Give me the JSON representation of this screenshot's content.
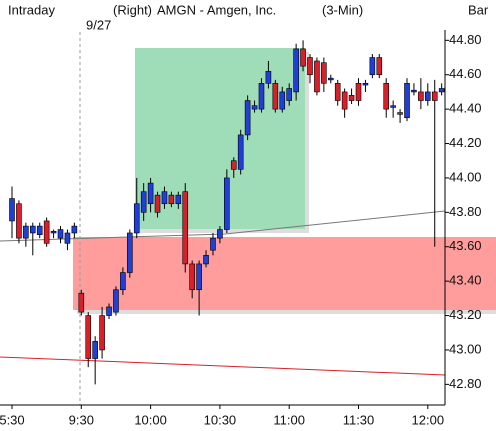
{
  "chart_data": {
    "type": "candlestick",
    "title": "AMGN - Amgen, Inc.",
    "header": {
      "left": "Intraday",
      "side": "(Right)",
      "interval": "(3-Min)",
      "style": "Bar"
    },
    "annotation": "9/27",
    "up_color": "#1f3fd6",
    "down_color": "#d8202a",
    "categories": [
      "5:30",
      null,
      null,
      null,
      null,
      null,
      null,
      null,
      null,
      null,
      "9:30",
      null,
      null,
      null,
      null,
      null,
      null,
      null,
      null,
      null,
      "10:00",
      null,
      null,
      null,
      null,
      null,
      null,
      null,
      null,
      null,
      "10:30",
      null,
      null,
      null,
      null,
      null,
      null,
      null,
      null,
      null,
      "11:00",
      null,
      null,
      null,
      null,
      null,
      null,
      null,
      null,
      null,
      "11:30",
      null,
      null,
      null,
      null,
      null,
      null,
      null,
      null,
      null,
      "12:00",
      null,
      null
    ],
    "open": [
      43.75,
      43.85,
      43.65,
      43.68,
      43.67,
      43.75,
      43.68,
      43.65,
      43.62,
      43.68,
      43.33,
      43.2,
      42.95,
      43.2,
      43.2,
      43.22,
      43.35,
      43.45,
      43.68,
      43.8,
      43.85,
      43.9,
      43.85,
      43.9,
      43.85,
      43.92,
      43.5,
      43.35,
      43.5,
      43.58,
      43.65,
      43.7,
      44.1,
      44.05,
      44.25,
      44.4,
      44.4,
      44.55,
      44.55,
      44.4,
      44.45,
      44.5,
      44.75,
      44.7,
      44.68,
      44.67,
      44.57,
      44.55,
      44.5,
      44.48,
      44.55,
      44.54,
      44.6,
      44.7,
      44.55,
      44.41,
      44.38,
      44.35,
      44.5,
      44.5,
      44.45,
      44.5,
      44.5
    ],
    "high": [
      43.95,
      43.87,
      43.74,
      43.74,
      43.74,
      43.77,
      43.7,
      43.72,
      43.7,
      43.74,
      43.35,
      43.22,
      43.08,
      43.25,
      43.27,
      43.37,
      43.48,
      43.7,
      44.0,
      43.97,
      44.0,
      43.92,
      43.95,
      43.92,
      43.92,
      43.97,
      43.52,
      43.52,
      43.58,
      43.68,
      43.72,
      44.05,
      44.12,
      44.28,
      44.48,
      44.45,
      44.58,
      44.68,
      44.57,
      44.53,
      44.55,
      44.78,
      44.8,
      44.72,
      44.7,
      44.7,
      44.6,
      44.57,
      44.52,
      44.52,
      44.58,
      44.57,
      44.72,
      44.72,
      44.58,
      44.45,
      44.4,
      44.58,
      44.55,
      44.58,
      44.55,
      44.57,
      44.55
    ],
    "low": [
      43.65,
      43.62,
      43.6,
      43.55,
      43.65,
      43.6,
      43.65,
      43.62,
      43.58,
      43.65,
      43.2,
      42.9,
      42.8,
      42.95,
      43.18,
      43.2,
      43.32,
      43.42,
      43.65,
      43.75,
      43.8,
      43.77,
      43.82,
      43.83,
      43.82,
      43.45,
      43.3,
      43.2,
      43.48,
      43.55,
      43.62,
      43.68,
      44.0,
      44.02,
      44.22,
      44.38,
      44.38,
      44.52,
      44.38,
      44.38,
      44.42,
      44.45,
      44.62,
      44.55,
      44.48,
      44.5,
      44.55,
      44.42,
      44.35,
      44.43,
      44.42,
      44.5,
      44.58,
      44.58,
      44.35,
      44.35,
      44.32,
      44.33,
      44.48,
      44.4,
      44.42,
      43.6,
      44.48
    ],
    "close": [
      43.88,
      43.65,
      43.72,
      43.72,
      43.72,
      43.62,
      43.69,
      43.7,
      43.68,
      43.72,
      43.22,
      42.95,
      43.05,
      43.0,
      43.25,
      43.35,
      43.45,
      43.68,
      43.85,
      43.92,
      43.97,
      43.8,
      43.92,
      43.85,
      43.9,
      43.5,
      43.35,
      43.5,
      43.55,
      43.65,
      43.7,
      44.0,
      44.05,
      44.25,
      44.45,
      44.42,
      44.55,
      44.62,
      44.4,
      44.5,
      44.52,
      44.75,
      44.65,
      44.6,
      44.5,
      44.55,
      44.58,
      44.45,
      44.4,
      44.45,
      44.45,
      44.55,
      44.7,
      44.6,
      44.4,
      44.42,
      44.37,
      44.55,
      44.51,
      44.45,
      44.5,
      44.45,
      44.52
    ],
    "ylim": [
      42.68,
      44.86
    ],
    "yticks": [
      {
        "value": 42.8,
        "label": "42.80"
      },
      {
        "value": 43.0,
        "label": "43.00"
      },
      {
        "value": 43.2,
        "label": "43.20"
      },
      {
        "value": 43.4,
        "label": "43.40"
      },
      {
        "value": 43.6,
        "label": "43.60"
      },
      {
        "value": 43.8,
        "label": "43.80"
      },
      {
        "value": 44.0,
        "label": "44.00"
      },
      {
        "value": 44.2,
        "label": "44.20"
      },
      {
        "value": 44.4,
        "label": "44.40"
      },
      {
        "value": 44.6,
        "label": "44.60"
      },
      {
        "value": 44.8,
        "label": "44.80"
      }
    ]
  }
}
